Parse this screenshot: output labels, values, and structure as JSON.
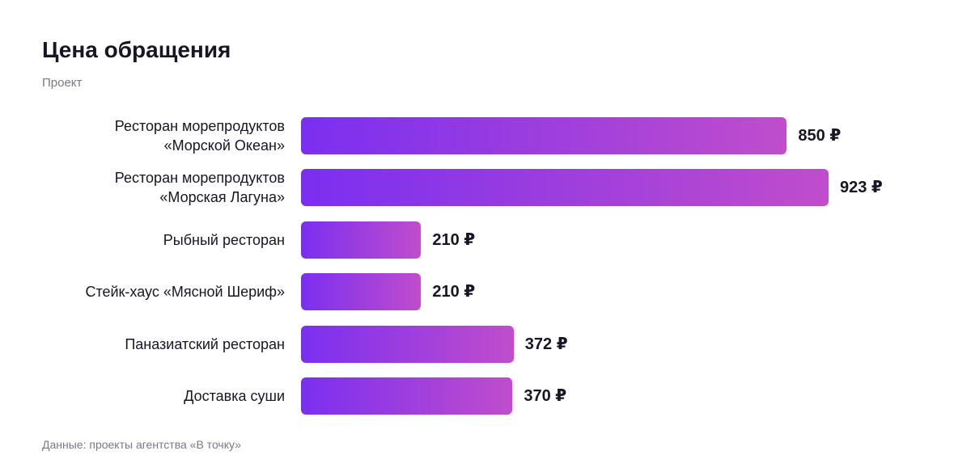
{
  "chart_data": {
    "type": "bar",
    "orientation": "horizontal",
    "title": "Цена обращения",
    "subtitle": "Проект",
    "source": "Данные: проекты агентства «В точку»",
    "categories": [
      "Ресторан морепродуктов\n«Морской Океан»",
      "Ресторан морепродуктов\n«Морская Лагуна»",
      "Рыбный ресторан",
      "Стейк-хаус «Мясной Шериф»",
      "Паназиатский ресторан",
      "Доставка суши"
    ],
    "values": [
      850,
      923,
      210,
      210,
      372,
      370
    ],
    "value_labels": [
      "850 ₽",
      "923 ₽",
      "210 ₽",
      "210 ₽",
      "372 ₽",
      "370 ₽"
    ]
  }
}
